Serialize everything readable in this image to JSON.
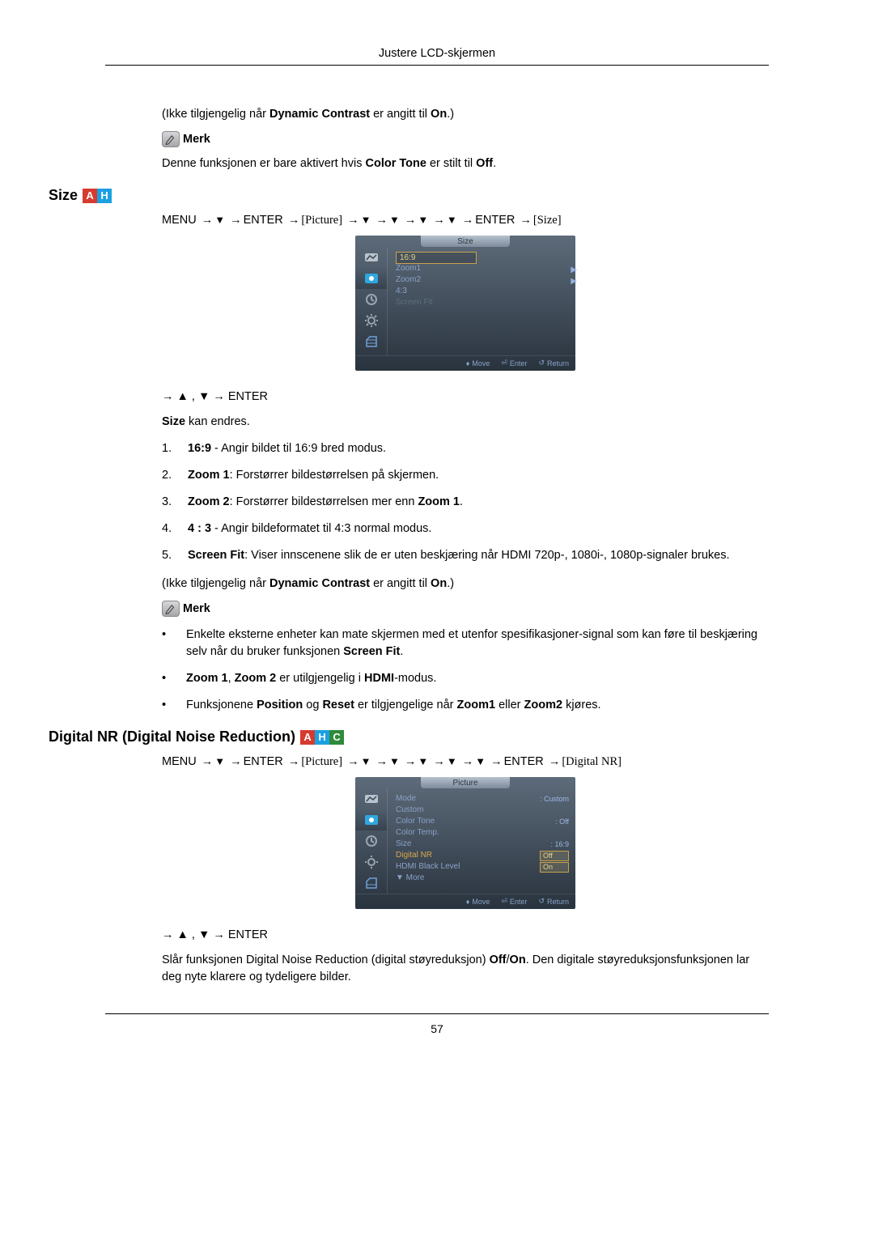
{
  "header": {
    "title": "Justere LCD-skjermen"
  },
  "intro": {
    "not_available_prefix": "(Ikke tilgjengelig når ",
    "dyn_contrast": "Dynamic Contrast",
    "not_available_mid": " er angitt til ",
    "on": "On",
    "not_available_suffix": ".)",
    "note_label": "Merk",
    "note_text_prefix": "Denne funksjonen er bare aktivert hvis ",
    "color_tone": "Color Tone",
    "note_text_mid": " er stilt til ",
    "off": "Off",
    "note_text_suffix": "."
  },
  "size": {
    "title": "Size",
    "nav_menu": "MENU",
    "nav_enter": "ENTER",
    "nav_picture": "[Picture]",
    "nav_size": "[Size]",
    "osd_title": "Size",
    "osd_items": [
      "16:9",
      "Zoom1",
      "Zoom2",
      "4:3",
      "Screen Fit"
    ],
    "osd_footer": {
      "move": "Move",
      "enter": "Enter",
      "return": "Return"
    },
    "after_nav": "→ ▲ , ▼ → ENTER",
    "can_change_bold": "Size",
    "can_change_rest": " kan endres.",
    "list": [
      {
        "n": "1.",
        "bold": "16:9",
        "rest": " - Angir bildet til 16:9 bred modus."
      },
      {
        "n": "2.",
        "bold": "Zoom 1",
        "rest": ": Forstørrer bildestørrelsen på skjermen."
      },
      {
        "n": "3.",
        "bold": "Zoom 2",
        "rest": ": Forstørrer bildestørrelsen mer enn ",
        "bold2": "Zoom 1",
        "rest2": "."
      },
      {
        "n": "4.",
        "bold": "4 : 3",
        "rest": " - Angir bildeformatet til 4:3 normal modus."
      },
      {
        "n": "5.",
        "bold": "Screen Fit",
        "rest": ": Viser innscenene slik de er uten beskjæring når HDMI 720p-, 1080i-, 1080p-signaler brukes."
      }
    ],
    "note_label": "Merk",
    "bullets": [
      {
        "pre": "Enkelte eksterne enheter kan mate skjermen med et utenfor spesifikasjoner-signal som kan føre til beskjæring selv når du bruker funksjonen ",
        "bold": "Screen Fit",
        "post": "."
      },
      {
        "bold": "Zoom 1",
        "mid1": ",  ",
        "bold2": "Zoom 2",
        "mid2": " er utilgjengelig i ",
        "bold3": "HDMI",
        "post": "-modus."
      },
      {
        "pre": "Funksjonene ",
        "bold": "Position",
        "mid1": " og ",
        "bold2": "Reset",
        "mid2": " er tilgjengelige når ",
        "bold3": "Zoom1",
        "mid3": " eller ",
        "bold4": "Zoom2",
        "post": " kjøres."
      }
    ]
  },
  "dnr": {
    "title": "Digital NR (Digital Noise Reduction)",
    "nav_menu": "MENU",
    "nav_enter": "ENTER",
    "nav_picture": "[Picture]",
    "nav_dnr": "[Digital NR]",
    "osd_title": "Picture",
    "osd_rows": [
      {
        "label": "Mode",
        "value": "Custom"
      },
      {
        "label": "Custom",
        "value": ""
      },
      {
        "label": "Color Tone",
        "value": "Off"
      },
      {
        "label": "Color Temp.",
        "value": ""
      },
      {
        "label": "Size",
        "value": "16:9"
      },
      {
        "label": "Digital NR",
        "value": "Off",
        "highlight": true
      },
      {
        "label": "HDMI Black Level",
        "value": "On"
      },
      {
        "label": "▼ More",
        "value": ""
      }
    ],
    "osd_footer": {
      "move": "Move",
      "enter": "Enter",
      "return": "Return"
    },
    "after_nav": "→ ▲ , ▼ → ENTER",
    "desc_pre": "Slår funksjonen Digital Noise Reduction (digital støyreduksjon) ",
    "desc_bold1": "Off",
    "desc_slash": "/",
    "desc_bold2": "On",
    "desc_post": ". Den digitale støyreduksjonsfunksjonen lar deg nyte klarere og tydeligere bilder."
  },
  "footer": {
    "page": "57"
  },
  "colors": {
    "badge_a": "#d63b2f",
    "badge_h": "#1aa1e2",
    "badge_c": "#2f8a3a"
  }
}
